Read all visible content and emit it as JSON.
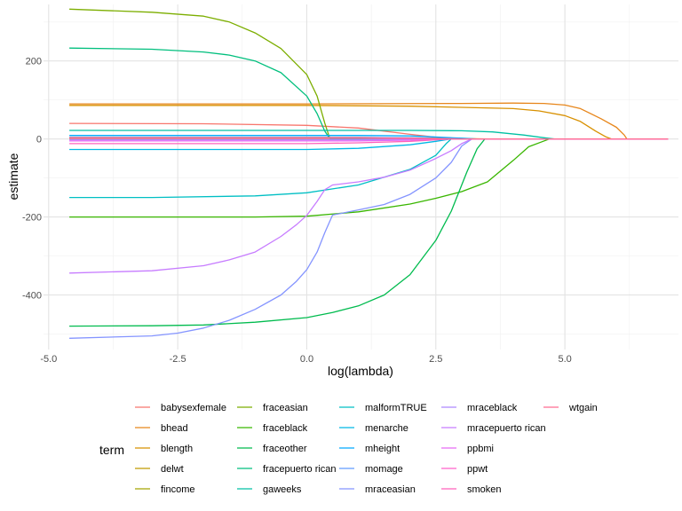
{
  "chart_data": {
    "type": "line",
    "xlabel": "log(lambda)",
    "ylabel": "estimate",
    "xlim": [
      -5.1,
      7.2
    ],
    "ylim": [
      -540,
      345
    ],
    "x_ticks": [
      -5.0,
      -2.5,
      0.0,
      2.5,
      5.0
    ],
    "x_tick_labels": [
      "-5.0",
      "-2.5",
      "0.0",
      "2.5",
      "5.0"
    ],
    "y_ticks": [
      -400,
      -200,
      0,
      200
    ],
    "y_tick_labels": [
      "-400",
      "-200",
      "0",
      "200"
    ],
    "grid": true,
    "legend": {
      "title": "term",
      "position": "bottom"
    },
    "series": [
      {
        "name": "babysexfemale",
        "color": "#F8766D",
        "points": [
          [
            -4.6,
            40
          ],
          [
            -2,
            39
          ],
          [
            0,
            35
          ],
          [
            1,
            28
          ],
          [
            2,
            12
          ],
          [
            2.8,
            0
          ],
          [
            7,
            0
          ]
        ]
      },
      {
        "name": "bhead",
        "color": "#E7861B",
        "points": [
          [
            -4.6,
            90
          ],
          [
            0,
            90
          ],
          [
            3,
            91
          ],
          [
            4,
            92
          ],
          [
            4.6,
            91
          ],
          [
            5,
            87
          ],
          [
            5.3,
            78
          ],
          [
            5.7,
            52
          ],
          [
            6,
            30
          ],
          [
            6.15,
            10
          ],
          [
            6.2,
            0
          ],
          [
            7,
            0
          ]
        ]
      },
      {
        "name": "blength",
        "color": "#D89000",
        "points": [
          [
            -4.6,
            86
          ],
          [
            0,
            86
          ],
          [
            2,
            84
          ],
          [
            3,
            81
          ],
          [
            4,
            78
          ],
          [
            4.5,
            72
          ],
          [
            5,
            60
          ],
          [
            5.3,
            45
          ],
          [
            5.6,
            20
          ],
          [
            5.8,
            5
          ],
          [
            5.9,
            0
          ],
          [
            7,
            0
          ]
        ]
      },
      {
        "name": "delwt",
        "color": "#C09B00",
        "points": [
          [
            -4.6,
            4
          ],
          [
            1,
            4
          ],
          [
            2.5,
            2
          ],
          [
            3.5,
            0
          ],
          [
            7,
            0
          ]
        ]
      },
      {
        "name": "fincome",
        "color": "#A3A500",
        "points": [
          [
            -4.6,
            1
          ],
          [
            1,
            1
          ],
          [
            2.5,
            0.5
          ],
          [
            3,
            0
          ],
          [
            7,
            0
          ]
        ]
      },
      {
        "name": "fraceasian",
        "color": "#7CAE00",
        "points": [
          [
            -4.6,
            333
          ],
          [
            -3,
            325
          ],
          [
            -2,
            315
          ],
          [
            -1.5,
            300
          ],
          [
            -1,
            272
          ],
          [
            -0.5,
            232
          ],
          [
            0,
            165
          ],
          [
            0.2,
            110
          ],
          [
            0.35,
            40
          ],
          [
            0.45,
            0
          ],
          [
            7,
            0
          ]
        ]
      },
      {
        "name": "fraceblack",
        "color": "#39B600",
        "points": [
          [
            -4.6,
            -200
          ],
          [
            -3,
            -200
          ],
          [
            -1,
            -200
          ],
          [
            0,
            -198
          ],
          [
            1,
            -187
          ],
          [
            2,
            -167
          ],
          [
            2.5,
            -152
          ],
          [
            3,
            -135
          ],
          [
            3.5,
            -110
          ],
          [
            4,
            -55
          ],
          [
            4.3,
            -20
          ],
          [
            4.6,
            -5
          ],
          [
            4.7,
            0
          ],
          [
            7,
            0
          ]
        ]
      },
      {
        "name": "fraceother",
        "color": "#00BB4E",
        "points": [
          [
            -4.6,
            -480
          ],
          [
            -3,
            -479
          ],
          [
            -2,
            -477
          ],
          [
            -1,
            -470
          ],
          [
            0,
            -458
          ],
          [
            0.5,
            -445
          ],
          [
            1,
            -428
          ],
          [
            1.5,
            -400
          ],
          [
            2,
            -348
          ],
          [
            2.5,
            -260
          ],
          [
            2.8,
            -185
          ],
          [
            3.1,
            -85
          ],
          [
            3.3,
            -25
          ],
          [
            3.45,
            0
          ],
          [
            7,
            0
          ]
        ]
      },
      {
        "name": "fracepuerto rican",
        "color": "#00BF7D",
        "points": [
          [
            -4.6,
            233
          ],
          [
            -3,
            230
          ],
          [
            -2,
            223
          ],
          [
            -1.5,
            215
          ],
          [
            -1,
            200
          ],
          [
            -0.5,
            170
          ],
          [
            0,
            110
          ],
          [
            0.2,
            65
          ],
          [
            0.35,
            20
          ],
          [
            0.45,
            0
          ],
          [
            7,
            0
          ]
        ]
      },
      {
        "name": "gaweeks",
        "color": "#00C1A3",
        "points": [
          [
            -4.6,
            22
          ],
          [
            0,
            22
          ],
          [
            2,
            22
          ],
          [
            3,
            21
          ],
          [
            3.6,
            18
          ],
          [
            4.2,
            10
          ],
          [
            4.6,
            3
          ],
          [
            4.8,
            0
          ],
          [
            7,
            0
          ]
        ]
      },
      {
        "name": "malformTRUE",
        "color": "#00BFC4",
        "points": [
          [
            -4.6,
            -150
          ],
          [
            -3,
            -150
          ],
          [
            -1,
            -146
          ],
          [
            0,
            -138
          ],
          [
            1,
            -118
          ],
          [
            2,
            -78
          ],
          [
            2.5,
            -42
          ],
          [
            2.7,
            -12
          ],
          [
            2.8,
            0
          ],
          [
            7,
            0
          ]
        ]
      },
      {
        "name": "menarche",
        "color": "#00B8E5",
        "points": [
          [
            -4.6,
            -27
          ],
          [
            0,
            -27
          ],
          [
            1,
            -24
          ],
          [
            2,
            -15
          ],
          [
            2.5,
            -6
          ],
          [
            2.8,
            0
          ],
          [
            7,
            0
          ]
        ]
      },
      {
        "name": "mheight",
        "color": "#00A9FF",
        "points": [
          [
            -4.6,
            9
          ],
          [
            1,
            9
          ],
          [
            2,
            8
          ],
          [
            3,
            2
          ],
          [
            3.3,
            0
          ],
          [
            7,
            0
          ]
        ]
      },
      {
        "name": "momage",
        "color": "#619CFF",
        "points": [
          [
            -4.6,
            4
          ],
          [
            1,
            4
          ],
          [
            2,
            3
          ],
          [
            3,
            0
          ],
          [
            7,
            0
          ]
        ]
      },
      {
        "name": "mraceasian",
        "color": "#8494FF",
        "points": [
          [
            -4.6,
            -511
          ],
          [
            -3,
            -505
          ],
          [
            -2.5,
            -498
          ],
          [
            -2,
            -485
          ],
          [
            -1.5,
            -465
          ],
          [
            -1,
            -437
          ],
          [
            -0.5,
            -400
          ],
          [
            -0.2,
            -365
          ],
          [
            0,
            -335
          ],
          [
            0.2,
            -290
          ],
          [
            0.35,
            -240
          ],
          [
            0.5,
            -195
          ],
          [
            1,
            -182
          ],
          [
            1.5,
            -168
          ],
          [
            2,
            -142
          ],
          [
            2.5,
            -100
          ],
          [
            2.8,
            -60
          ],
          [
            3,
            -18
          ],
          [
            3.2,
            0
          ],
          [
            7,
            0
          ]
        ]
      },
      {
        "name": "mraceblack",
        "color": "#AE87FF",
        "points": [
          [
            -4.6,
            -2
          ],
          [
            1,
            -2
          ],
          [
            2,
            -1
          ],
          [
            2.5,
            0
          ],
          [
            7,
            0
          ]
        ]
      },
      {
        "name": "mracepuerto rican",
        "color": "#C77CFF",
        "points": [
          [
            -4.6,
            -344
          ],
          [
            -3,
            -338
          ],
          [
            -2,
            -325
          ],
          [
            -1.5,
            -310
          ],
          [
            -1,
            -290
          ],
          [
            -0.5,
            -250
          ],
          [
            -0.2,
            -220
          ],
          [
            0,
            -196
          ],
          [
            0.2,
            -160
          ],
          [
            0.35,
            -130
          ],
          [
            0.5,
            -118
          ],
          [
            1,
            -110
          ],
          [
            1.5,
            -98
          ],
          [
            2,
            -80
          ],
          [
            2.5,
            -50
          ],
          [
            2.8,
            -30
          ],
          [
            3,
            -12
          ],
          [
            3.2,
            0
          ],
          [
            7,
            0
          ]
        ]
      },
      {
        "name": "ppbmi",
        "color": "#E76BF3",
        "points": [
          [
            -4.6,
            -5
          ],
          [
            1,
            -5
          ],
          [
            2,
            -3
          ],
          [
            3,
            0
          ],
          [
            7,
            0
          ]
        ]
      },
      {
        "name": "ppwt",
        "color": "#FF61C9",
        "points": [
          [
            -4.6,
            2
          ],
          [
            1,
            2
          ],
          [
            2,
            1
          ],
          [
            2.8,
            0
          ],
          [
            7,
            0
          ]
        ]
      },
      {
        "name": "smoken",
        "color": "#FF62BC",
        "points": [
          [
            -4.6,
            -12
          ],
          [
            0,
            -12
          ],
          [
            1,
            -10
          ],
          [
            2,
            -6
          ],
          [
            2.8,
            0
          ],
          [
            7,
            0
          ]
        ]
      },
      {
        "name": "wtgain",
        "color": "#FF6C91",
        "points": [
          [
            -4.6,
            3
          ],
          [
            1,
            3
          ],
          [
            2,
            2
          ],
          [
            3,
            0
          ],
          [
            7,
            0
          ]
        ]
      }
    ]
  }
}
